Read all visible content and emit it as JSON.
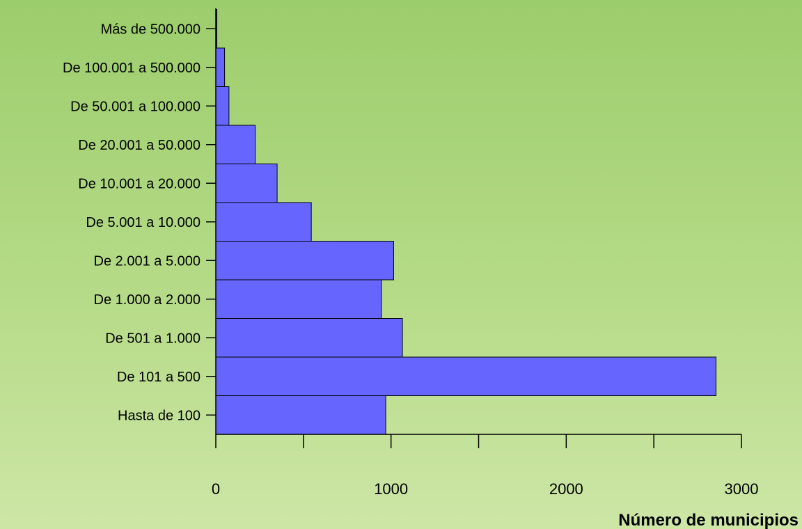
{
  "chart_data": {
    "type": "bar",
    "orientation": "horizontal",
    "categories": [
      "Hasta de 100",
      "De 101 a 500",
      "De 501 a 1.000",
      "De 1.000 a 2.000",
      "De 2.001 a 5.000",
      "De 5.001 a 10.000",
      "De 10.001 a 20.000",
      "De 20.001 a 50.000",
      "De 50.001 a 100.000",
      "De 100.001 a 500.000",
      "Más de 500.000"
    ],
    "values": [
      970,
      2855,
      1065,
      945,
      1015,
      545,
      350,
      225,
      75,
      50,
      6
    ],
    "xlabel": "Número de municipios",
    "ylabel": "",
    "xlim": [
      0,
      3000
    ],
    "xticks": [
      0,
      500,
      1000,
      1500,
      2000,
      2500,
      3000
    ],
    "xtick_labels": [
      "0",
      "",
      "1000",
      "",
      "2000",
      "",
      "3000"
    ],
    "bar_color": "#6666ff",
    "grid": false,
    "legend": "none"
  }
}
